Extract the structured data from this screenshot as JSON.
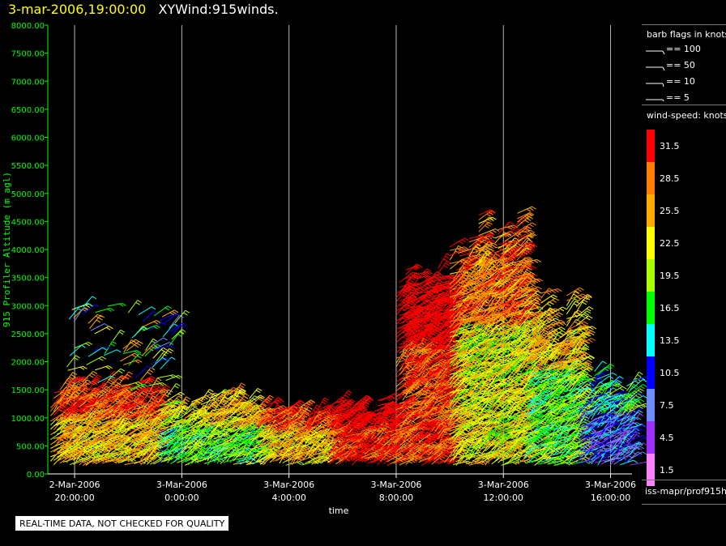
{
  "header": {
    "datetime": "3-mar-2006,19:00:00",
    "title": "XYWind:915winds."
  },
  "chart_data": {
    "type": "scatter",
    "subtype": "wind-barbs",
    "ylabel": "915 Profiler Altitude (m agl)",
    "xlabel": "time",
    "ylim": [
      0,
      8000
    ],
    "yticks": [
      "0.00",
      "500.00",
      "1000.00",
      "1500.00",
      "2000.00",
      "2500.00",
      "3000.00",
      "3500.00",
      "4000.00",
      "4500.00",
      "5000.00",
      "5500.00",
      "6000.00",
      "6500.00",
      "7000.00",
      "7500.00",
      "8000.00"
    ],
    "xticks": [
      {
        "date": "2-Mar-2006",
        "time": "20:00:00"
      },
      {
        "date": "3-Mar-2006",
        "time": "0:00:00"
      },
      {
        "date": "3-Mar-2006",
        "time": "4:00:00"
      },
      {
        "date": "3-Mar-2006",
        "time": "8:00:00"
      },
      {
        "date": "3-Mar-2006",
        "time": "12:00:00"
      },
      {
        "date": "3-Mar-2006",
        "time": "16:00:00"
      }
    ],
    "x_hours_range": [
      -1,
      20.8
    ],
    "grid": "vertical",
    "wind_profile": [
      {
        "h0": -0.9,
        "h1": 3.0,
        "top": 1600,
        "speed": 24
      },
      {
        "h0": 3.1,
        "h1": 3.9,
        "top": 1300,
        "speed": 16
      },
      {
        "h0": 4.0,
        "h1": 6.8,
        "top": 1300,
        "speed": 18
      },
      {
        "h0": 6.8,
        "h1": 9.5,
        "top": 1200,
        "speed": 24
      },
      {
        "h0": 9.5,
        "h1": 12.0,
        "top": 1250,
        "speed": 31
      },
      {
        "h0": 12.0,
        "h1": 14.0,
        "top": 3700,
        "speed": 30
      },
      {
        "h0": 14.0,
        "h1": 16.8,
        "top": 4300,
        "speed": 22
      },
      {
        "h0": 16.8,
        "h1": 18.8,
        "top": 3000,
        "speed": 18
      },
      {
        "h0": 18.8,
        "h1": 20.8,
        "top": 1700,
        "speed": 9
      }
    ],
    "upper_cloud": {
      "h0": -0.3,
      "h1": 3.8,
      "bottom": 1500,
      "top": 3000,
      "speed": 16
    }
  },
  "legend": {
    "barb_title": "barb flags in knots",
    "barbs": [
      "== 100",
      "== 50",
      "== 10",
      "== 5"
    ],
    "speed_title": "wind-speed: knots",
    "colorbar": [
      {
        "label": "31.5",
        "color": "#ff0000"
      },
      {
        "label": "28.5",
        "color": "#ff7f00"
      },
      {
        "label": "25.5",
        "color": "#ffaa00"
      },
      {
        "label": "22.5",
        "color": "#ffff00"
      },
      {
        "label": "19.5",
        "color": "#aaff00"
      },
      {
        "label": "16.5",
        "color": "#00ff00"
      },
      {
        "label": "13.5",
        "color": "#00ffff"
      },
      {
        "label": "10.5",
        "color": "#0000ff"
      },
      {
        "label": "7.5",
        "color": "#6d8cff"
      },
      {
        "label": "4.5",
        "color": "#9f2fff"
      },
      {
        "label": "1.5",
        "color": "#ff80ff"
      }
    ],
    "source": "iss-mapr/prof915h"
  },
  "footer": {
    "qc_notice": "REAL-TIME DATA, NOT CHECKED FOR QUALITY"
  }
}
